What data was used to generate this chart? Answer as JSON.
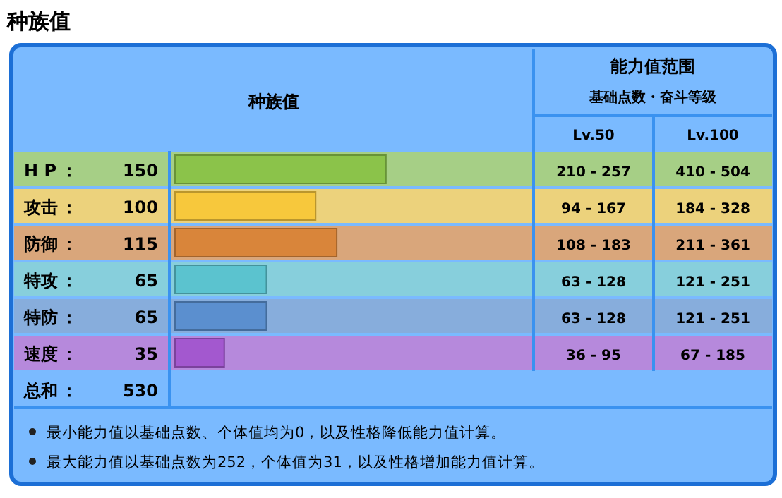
{
  "chart_data": {
    "type": "bar",
    "orientation": "horizontal",
    "title": "种族值",
    "categories": [
      "H P",
      "攻击",
      "防御",
      "特攻",
      "特防",
      "速度"
    ],
    "values": [
      150,
      100,
      115,
      65,
      65,
      35
    ],
    "colors": [
      "#8bc34a",
      "#f7c83c",
      "#d9853a",
      "#5bc3cf",
      "#5b8fcf",
      "#a358cf"
    ],
    "xlim": [
      0,
      255
    ],
    "data_labels": true,
    "tick_labels": "y",
    "annotations": [
      "种族值",
      "能力值范围",
      "基础点数・奋斗等级",
      "Lv.50",
      "Lv.100",
      "总和",
      "530",
      "：",
      "210 - 257",
      "410 - 504",
      "94 - 167",
      "184 - 328",
      "108 - 183",
      "211 - 361",
      "63 - 128",
      "121 - 251",
      "63 - 128",
      "121 - 251",
      "36 - 95",
      "67 - 185",
      "最小能力值以基础点数、个体值均为0，以及性格降低能力值计算。",
      "最大能力值以基础点数为252，个体值为31，以及性格增加能力值计算。"
    ]
  }
}
